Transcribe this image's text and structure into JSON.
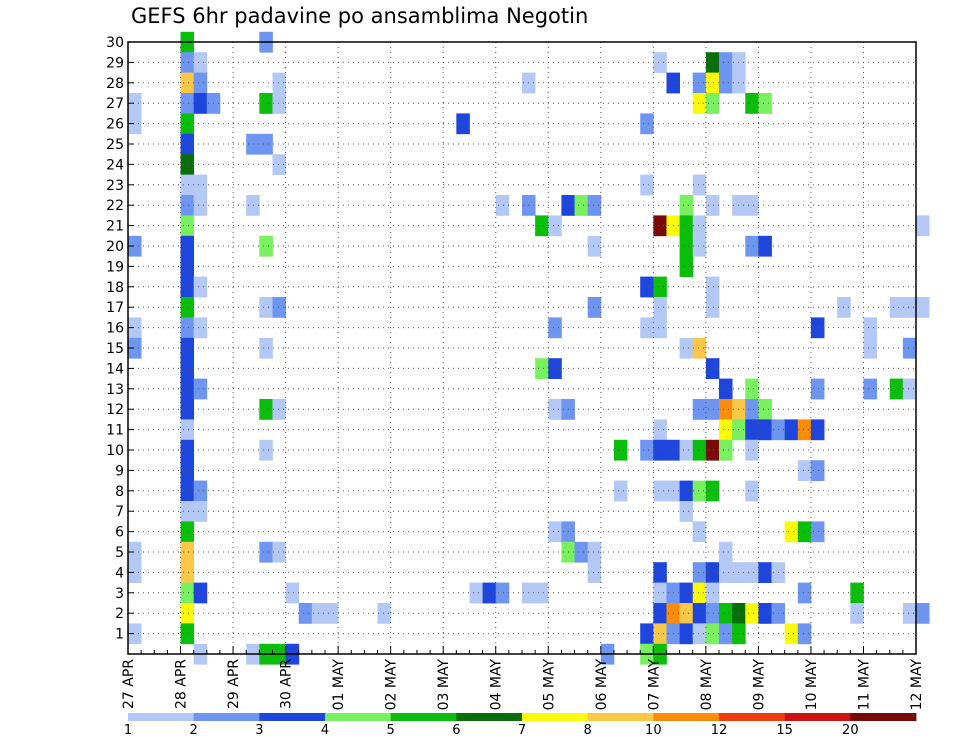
{
  "chart_data": {
    "type": "heatmap",
    "title": "GEFS 6hr padavine po ansamblima Negotin",
    "grid": true,
    "y_members": [
      1,
      2,
      3,
      4,
      5,
      6,
      7,
      8,
      9,
      10,
      11,
      12,
      13,
      14,
      15,
      16,
      17,
      18,
      19,
      20,
      21,
      22,
      23,
      24,
      25,
      26,
      27,
      28,
      29,
      30
    ],
    "ylim": [
      0,
      30
    ],
    "x_start_label": "27 APR",
    "x_step_hours": 6,
    "x_steps": 61,
    "x_labels": [
      {
        "label": "27 APR",
        "step": 0
      },
      {
        "label": "28 APR",
        "step": 4
      },
      {
        "label": "29 APR",
        "step": 8
      },
      {
        "label": "30 APR",
        "step": 12
      },
      {
        "label": "01 MAY",
        "step": 16
      },
      {
        "label": "02 MAY",
        "step": 20
      },
      {
        "label": "03 MAY",
        "step": 24
      },
      {
        "label": "04 MAY",
        "step": 28
      },
      {
        "label": "05 MAY",
        "step": 32
      },
      {
        "label": "06 MAY",
        "step": 36
      },
      {
        "label": "07 MAY",
        "step": 40
      },
      {
        "label": "08 MAY",
        "step": 44
      },
      {
        "label": "09 MAY",
        "step": 48
      },
      {
        "label": "10 MAY",
        "step": 52
      },
      {
        "label": "11 MAY",
        "step": 56
      },
      {
        "label": "12 MAY",
        "step": 60
      }
    ],
    "colorbar": {
      "labels": [
        "1",
        "2",
        "3",
        "4",
        "5",
        "6",
        "7",
        "8",
        "10",
        "12",
        "15",
        "20"
      ],
      "colors": [
        "#b4c8f5",
        "#6e96f0",
        "#1e46dc",
        "#78f060",
        "#0cbe0c",
        "#0a6e0a",
        "#fafa0a",
        "#fac846",
        "#fa8c0a",
        "#f03c0a",
        "#c81414",
        "#780a0a"
      ]
    },
    "cells": [
      {
        "m": 30,
        "t": 4,
        "v": 5
      },
      {
        "m": 30,
        "t": 10,
        "v": 2
      },
      {
        "m": 29,
        "t": 4,
        "v": 2
      },
      {
        "m": 29,
        "t": 5,
        "v": 1
      },
      {
        "m": 29,
        "t": 40,
        "v": 1
      },
      {
        "m": 29,
        "t": 44,
        "v": 6
      },
      {
        "m": 29,
        "t": 45,
        "v": 2
      },
      {
        "m": 29,
        "t": 46,
        "v": 1
      },
      {
        "m": 28,
        "t": 4,
        "v": 8
      },
      {
        "m": 28,
        "t": 5,
        "v": 2
      },
      {
        "m": 28,
        "t": 11,
        "v": 1
      },
      {
        "m": 28,
        "t": 30,
        "v": 1
      },
      {
        "m": 28,
        "t": 41,
        "v": 3
      },
      {
        "m": 28,
        "t": 43,
        "v": 2
      },
      {
        "m": 28,
        "t": 44,
        "v": 7
      },
      {
        "m": 28,
        "t": 45,
        "v": 2
      },
      {
        "m": 28,
        "t": 46,
        "v": 1
      },
      {
        "m": 27,
        "t": 0,
        "v": 1
      },
      {
        "m": 27,
        "t": 4,
        "v": 2
      },
      {
        "m": 27,
        "t": 5,
        "v": 3
      },
      {
        "m": 27,
        "t": 6,
        "v": 2
      },
      {
        "m": 27,
        "t": 10,
        "v": 5
      },
      {
        "m": 27,
        "t": 11,
        "v": 1
      },
      {
        "m": 27,
        "t": 43,
        "v": 7
      },
      {
        "m": 27,
        "t": 44,
        "v": 4
      },
      {
        "m": 27,
        "t": 47,
        "v": 5
      },
      {
        "m": 27,
        "t": 48,
        "v": 4
      },
      {
        "m": 26,
        "t": 0,
        "v": 1
      },
      {
        "m": 26,
        "t": 4,
        "v": 5
      },
      {
        "m": 26,
        "t": 25,
        "v": 3
      },
      {
        "m": 26,
        "t": 39,
        "v": 2
      },
      {
        "m": 25,
        "t": 4,
        "v": 3
      },
      {
        "m": 25,
        "t": 9,
        "v": 2
      },
      {
        "m": 25,
        "t": 10,
        "v": 2
      },
      {
        "m": 24,
        "t": 4,
        "v": 6
      },
      {
        "m": 24,
        "t": 11,
        "v": 1
      },
      {
        "m": 23,
        "t": 4,
        "v": 1
      },
      {
        "m": 23,
        "t": 5,
        "v": 1
      },
      {
        "m": 23,
        "t": 39,
        "v": 1
      },
      {
        "m": 23,
        "t": 43,
        "v": 1
      },
      {
        "m": 22,
        "t": 4,
        "v": 2
      },
      {
        "m": 22,
        "t": 5,
        "v": 1
      },
      {
        "m": 22,
        "t": 9,
        "v": 1
      },
      {
        "m": 22,
        "t": 28,
        "v": 1
      },
      {
        "m": 22,
        "t": 30,
        "v": 2
      },
      {
        "m": 22,
        "t": 33,
        "v": 3
      },
      {
        "m": 22,
        "t": 34,
        "v": 4
      },
      {
        "m": 22,
        "t": 35,
        "v": 2
      },
      {
        "m": 22,
        "t": 42,
        "v": 4
      },
      {
        "m": 22,
        "t": 44,
        "v": 1
      },
      {
        "m": 22,
        "t": 46,
        "v": 1
      },
      {
        "m": 22,
        "t": 47,
        "v": 1
      },
      {
        "m": 21,
        "t": 4,
        "v": 4
      },
      {
        "m": 21,
        "t": 31,
        "v": 5
      },
      {
        "m": 21,
        "t": 32,
        "v": 1
      },
      {
        "m": 21,
        "t": 40,
        "v": 20
      },
      {
        "m": 21,
        "t": 41,
        "v": 7
      },
      {
        "m": 21,
        "t": 42,
        "v": 5
      },
      {
        "m": 21,
        "t": 43,
        "v": 1
      },
      {
        "m": 21,
        "t": 60,
        "v": 1
      },
      {
        "m": 20,
        "t": 0,
        "v": 2
      },
      {
        "m": 20,
        "t": 4,
        "v": 3
      },
      {
        "m": 20,
        "t": 10,
        "v": 4
      },
      {
        "m": 20,
        "t": 35,
        "v": 1
      },
      {
        "m": 20,
        "t": 42,
        "v": 5
      },
      {
        "m": 20,
        "t": 43,
        "v": 1
      },
      {
        "m": 20,
        "t": 47,
        "v": 2
      },
      {
        "m": 20,
        "t": 48,
        "v": 3
      },
      {
        "m": 19,
        "t": 4,
        "v": 3
      },
      {
        "m": 19,
        "t": 42,
        "v": 5
      },
      {
        "m": 18,
        "t": 4,
        "v": 3
      },
      {
        "m": 18,
        "t": 5,
        "v": 1
      },
      {
        "m": 18,
        "t": 39,
        "v": 3
      },
      {
        "m": 18,
        "t": 40,
        "v": 5
      },
      {
        "m": 18,
        "t": 44,
        "v": 1
      },
      {
        "m": 17,
        "t": 4,
        "v": 5
      },
      {
        "m": 17,
        "t": 10,
        "v": 1
      },
      {
        "m": 17,
        "t": 11,
        "v": 2
      },
      {
        "m": 17,
        "t": 35,
        "v": 2
      },
      {
        "m": 17,
        "t": 40,
        "v": 1
      },
      {
        "m": 17,
        "t": 44,
        "v": 1
      },
      {
        "m": 17,
        "t": 54,
        "v": 1
      },
      {
        "m": 17,
        "t": 58,
        "v": 1
      },
      {
        "m": 17,
        "t": 59,
        "v": 1
      },
      {
        "m": 17,
        "t": 60,
        "v": 1
      },
      {
        "m": 16,
        "t": 0,
        "v": 1
      },
      {
        "m": 16,
        "t": 4,
        "v": 2
      },
      {
        "m": 16,
        "t": 5,
        "v": 1
      },
      {
        "m": 16,
        "t": 32,
        "v": 2
      },
      {
        "m": 16,
        "t": 39,
        "v": 1
      },
      {
        "m": 16,
        "t": 40,
        "v": 1
      },
      {
        "m": 16,
        "t": 52,
        "v": 3
      },
      {
        "m": 16,
        "t": 56,
        "v": 1
      },
      {
        "m": 15,
        "t": 0,
        "v": 2
      },
      {
        "m": 15,
        "t": 4,
        "v": 3
      },
      {
        "m": 15,
        "t": 10,
        "v": 1
      },
      {
        "m": 15,
        "t": 42,
        "v": 1
      },
      {
        "m": 15,
        "t": 43,
        "v": 8
      },
      {
        "m": 15,
        "t": 56,
        "v": 1
      },
      {
        "m": 15,
        "t": 59,
        "v": 2
      },
      {
        "m": 14,
        "t": 4,
        "v": 3
      },
      {
        "m": 14,
        "t": 31,
        "v": 4
      },
      {
        "m": 14,
        "t": 32,
        "v": 3
      },
      {
        "m": 14,
        "t": 44,
        "v": 3
      },
      {
        "m": 13,
        "t": 4,
        "v": 3
      },
      {
        "m": 13,
        "t": 5,
        "v": 2
      },
      {
        "m": 13,
        "t": 45,
        "v": 3
      },
      {
        "m": 13,
        "t": 47,
        "v": 4
      },
      {
        "m": 13,
        "t": 52,
        "v": 2
      },
      {
        "m": 13,
        "t": 56,
        "v": 2
      },
      {
        "m": 13,
        "t": 58,
        "v": 5
      },
      {
        "m": 13,
        "t": 59,
        "v": 1
      },
      {
        "m": 12,
        "t": 4,
        "v": 3
      },
      {
        "m": 12,
        "t": 10,
        "v": 5
      },
      {
        "m": 12,
        "t": 11,
        "v": 1
      },
      {
        "m": 12,
        "t": 32,
        "v": 1
      },
      {
        "m": 12,
        "t": 33,
        "v": 2
      },
      {
        "m": 12,
        "t": 43,
        "v": 2
      },
      {
        "m": 12,
        "t": 44,
        "v": 2
      },
      {
        "m": 12,
        "t": 45,
        "v": 10
      },
      {
        "m": 12,
        "t": 46,
        "v": 8
      },
      {
        "m": 12,
        "t": 47,
        "v": 2
      },
      {
        "m": 12,
        "t": 48,
        "v": 4
      },
      {
        "m": 11,
        "t": 4,
        "v": 1
      },
      {
        "m": 11,
        "t": 40,
        "v": 1
      },
      {
        "m": 11,
        "t": 45,
        "v": 7
      },
      {
        "m": 11,
        "t": 46,
        "v": 4
      },
      {
        "m": 11,
        "t": 47,
        "v": 3
      },
      {
        "m": 11,
        "t": 48,
        "v": 3
      },
      {
        "m": 11,
        "t": 49,
        "v": 2
      },
      {
        "m": 11,
        "t": 50,
        "v": 3
      },
      {
        "m": 11,
        "t": 51,
        "v": 10
      },
      {
        "m": 11,
        "t": 52,
        "v": 3
      },
      {
        "m": 10,
        "t": 4,
        "v": 3
      },
      {
        "m": 10,
        "t": 10,
        "v": 1
      },
      {
        "m": 10,
        "t": 37,
        "v": 5
      },
      {
        "m": 10,
        "t": 39,
        "v": 2
      },
      {
        "m": 10,
        "t": 40,
        "v": 3
      },
      {
        "m": 10,
        "t": 41,
        "v": 3
      },
      {
        "m": 10,
        "t": 42,
        "v": 1
      },
      {
        "m": 10,
        "t": 43,
        "v": 5
      },
      {
        "m": 10,
        "t": 44,
        "v": 20
      },
      {
        "m": 10,
        "t": 45,
        "v": 4
      },
      {
        "m": 10,
        "t": 47,
        "v": 1
      },
      {
        "m": 9,
        "t": 4,
        "v": 3
      },
      {
        "m": 9,
        "t": 51,
        "v": 1
      },
      {
        "m": 9,
        "t": 52,
        "v": 2
      },
      {
        "m": 8,
        "t": 4,
        "v": 3
      },
      {
        "m": 8,
        "t": 5,
        "v": 2
      },
      {
        "m": 8,
        "t": 37,
        "v": 1
      },
      {
        "m": 8,
        "t": 40,
        "v": 1
      },
      {
        "m": 8,
        "t": 41,
        "v": 1
      },
      {
        "m": 8,
        "t": 42,
        "v": 3
      },
      {
        "m": 8,
        "t": 43,
        "v": 4
      },
      {
        "m": 8,
        "t": 44,
        "v": 5
      },
      {
        "m": 8,
        "t": 47,
        "v": 1
      },
      {
        "m": 7,
        "t": 4,
        "v": 1
      },
      {
        "m": 7,
        "t": 5,
        "v": 1
      },
      {
        "m": 7,
        "t": 42,
        "v": 1
      },
      {
        "m": 6,
        "t": 4,
        "v": 5
      },
      {
        "m": 6,
        "t": 32,
        "v": 1
      },
      {
        "m": 6,
        "t": 33,
        "v": 2
      },
      {
        "m": 6,
        "t": 43,
        "v": 1
      },
      {
        "m": 6,
        "t": 50,
        "v": 7
      },
      {
        "m": 6,
        "t": 51,
        "v": 5
      },
      {
        "m": 6,
        "t": 52,
        "v": 2
      },
      {
        "m": 5,
        "t": 0,
        "v": 1
      },
      {
        "m": 5,
        "t": 4,
        "v": 8
      },
      {
        "m": 5,
        "t": 10,
        "v": 2
      },
      {
        "m": 5,
        "t": 11,
        "v": 1
      },
      {
        "m": 5,
        "t": 33,
        "v": 4
      },
      {
        "m": 5,
        "t": 34,
        "v": 2
      },
      {
        "m": 5,
        "t": 35,
        "v": 1
      },
      {
        "m": 5,
        "t": 45,
        "v": 1
      },
      {
        "m": 4,
        "t": 0,
        "v": 1
      },
      {
        "m": 4,
        "t": 4,
        "v": 8
      },
      {
        "m": 4,
        "t": 35,
        "v": 1
      },
      {
        "m": 4,
        "t": 40,
        "v": 3
      },
      {
        "m": 4,
        "t": 43,
        "v": 2
      },
      {
        "m": 4,
        "t": 44,
        "v": 3
      },
      {
        "m": 4,
        "t": 45,
        "v": 1
      },
      {
        "m": 4,
        "t": 46,
        "v": 1
      },
      {
        "m": 4,
        "t": 47,
        "v": 1
      },
      {
        "m": 4,
        "t": 48,
        "v": 3
      },
      {
        "m": 4,
        "t": 49,
        "v": 1
      },
      {
        "m": 3,
        "t": 4,
        "v": 4
      },
      {
        "m": 3,
        "t": 5,
        "v": 3
      },
      {
        "m": 3,
        "t": 12,
        "v": 1
      },
      {
        "m": 3,
        "t": 26,
        "v": 1
      },
      {
        "m": 3,
        "t": 27,
        "v": 3
      },
      {
        "m": 3,
        "t": 28,
        "v": 2
      },
      {
        "m": 3,
        "t": 30,
        "v": 1
      },
      {
        "m": 3,
        "t": 31,
        "v": 1
      },
      {
        "m": 3,
        "t": 40,
        "v": 1
      },
      {
        "m": 3,
        "t": 41,
        "v": 2
      },
      {
        "m": 3,
        "t": 42,
        "v": 3
      },
      {
        "m": 3,
        "t": 43,
        "v": 7
      },
      {
        "m": 3,
        "t": 44,
        "v": 1
      },
      {
        "m": 3,
        "t": 51,
        "v": 2
      },
      {
        "m": 3,
        "t": 55,
        "v": 5
      },
      {
        "m": 2,
        "t": 4,
        "v": 7
      },
      {
        "m": 2,
        "t": 13,
        "v": 2
      },
      {
        "m": 2,
        "t": 14,
        "v": 1
      },
      {
        "m": 2,
        "t": 15,
        "v": 1
      },
      {
        "m": 2,
        "t": 19,
        "v": 1
      },
      {
        "m": 2,
        "t": 40,
        "v": 3
      },
      {
        "m": 2,
        "t": 41,
        "v": 10
      },
      {
        "m": 2,
        "t": 42,
        "v": 8
      },
      {
        "m": 2,
        "t": 43,
        "v": 3
      },
      {
        "m": 2,
        "t": 44,
        "v": 2
      },
      {
        "m": 2,
        "t": 45,
        "v": 5
      },
      {
        "m": 2,
        "t": 46,
        "v": 6
      },
      {
        "m": 2,
        "t": 47,
        "v": 7
      },
      {
        "m": 2,
        "t": 48,
        "v": 3
      },
      {
        "m": 2,
        "t": 49,
        "v": 2
      },
      {
        "m": 2,
        "t": 55,
        "v": 1
      },
      {
        "m": 2,
        "t": 59,
        "v": 1
      },
      {
        "m": 2,
        "t": 60,
        "v": 2
      },
      {
        "m": 1,
        "t": 0,
        "v": 1
      },
      {
        "m": 1,
        "t": 4,
        "v": 5
      },
      {
        "m": 1,
        "t": 39,
        "v": 3
      },
      {
        "m": 1,
        "t": 40,
        "v": 8
      },
      {
        "m": 1,
        "t": 41,
        "v": 2
      },
      {
        "m": 1,
        "t": 42,
        "v": 3
      },
      {
        "m": 1,
        "t": 43,
        "v": 1
      },
      {
        "m": 1,
        "t": 44,
        "v": 4
      },
      {
        "m": 1,
        "t": 45,
        "v": 2
      },
      {
        "m": 1,
        "t": 46,
        "v": 5
      },
      {
        "m": 1,
        "t": 50,
        "v": 7
      },
      {
        "m": 1,
        "t": 51,
        "v": 2
      },
      {
        "m": 0,
        "t": 5,
        "v": 1
      },
      {
        "m": 0,
        "t": 9,
        "v": 1
      },
      {
        "m": 0,
        "t": 10,
        "v": 5
      },
      {
        "m": 0,
        "t": 11,
        "v": 5
      },
      {
        "m": 0,
        "t": 12,
        "v": 3
      },
      {
        "m": 0,
        "t": 36,
        "v": 2
      },
      {
        "m": 0,
        "t": 39,
        "v": 4
      },
      {
        "m": 0,
        "t": 40,
        "v": 5
      }
    ]
  }
}
